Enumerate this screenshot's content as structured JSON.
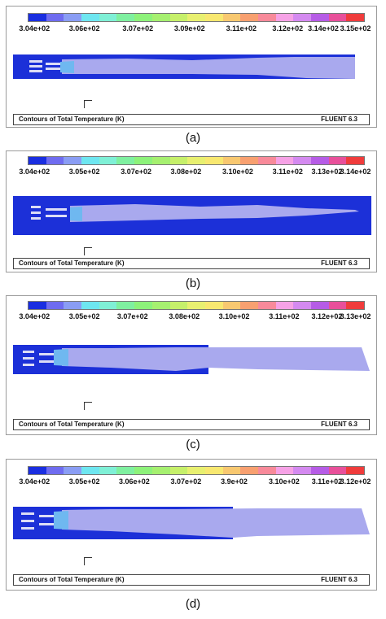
{
  "palette": [
    "#1a2ee0",
    "#6f6cf0",
    "#8a9df4",
    "#6ee6f0",
    "#7ff0d6",
    "#7ff0a0",
    "#8df27a",
    "#a6f070",
    "#c6f06a",
    "#e8f070",
    "#f8e870",
    "#f8c870",
    "#f8a070",
    "#f88a9a",
    "#f6a2e6",
    "#d48af0",
    "#b65ce6",
    "#e8509a",
    "#f03c3c"
  ],
  "colors": {
    "cold": "#1c30d8",
    "flame": "#a9a9ee",
    "flame_edge": "#6fb8f0",
    "injector": "#dcdcf6"
  },
  "panels": [
    {
      "id": "a",
      "tick_labels": [
        "3.04e+02",
        "3.06e+02",
        "3.07e+02",
        "3.09e+02",
        "3.11e+02",
        "3.12e+02",
        "3.14e+02",
        "3.15e+02"
      ],
      "caption": "Contours of Total Temperature (K)",
      "software": "FLUENT 6.3",
      "label": "(a)"
    },
    {
      "id": "b",
      "tick_labels": [
        "3.04e+02",
        "3.05e+02",
        "3.07e+02",
        "3.08e+02",
        "3.10e+02",
        "3.11e+02",
        "3.13e+02",
        "3.14e+02"
      ],
      "caption": "Contours of Total Temperature (K)",
      "software": "FLUENT 6.3",
      "label": "(b)"
    },
    {
      "id": "c",
      "tick_labels": [
        "3.04e+02",
        "3.05e+02",
        "3.07e+02",
        "3.08e+02",
        "3.10e+02",
        "3.11e+02",
        "3.12e+02",
        "3.13e+02"
      ],
      "caption": "Contours of Total Temperature (K)",
      "software": "FLUENT 6.3",
      "label": "(c)"
    },
    {
      "id": "d",
      "tick_labels": [
        "3.04e+02",
        "3.05e+02",
        "3.06e+02",
        "3.07e+02",
        "3.9e+02",
        "3.10e+02",
        "3.11e+02",
        "3.12e+02"
      ],
      "caption": "Contours of Total Temperature (K)",
      "software": "FLUENT 6.3",
      "label": "(d)"
    }
  ]
}
